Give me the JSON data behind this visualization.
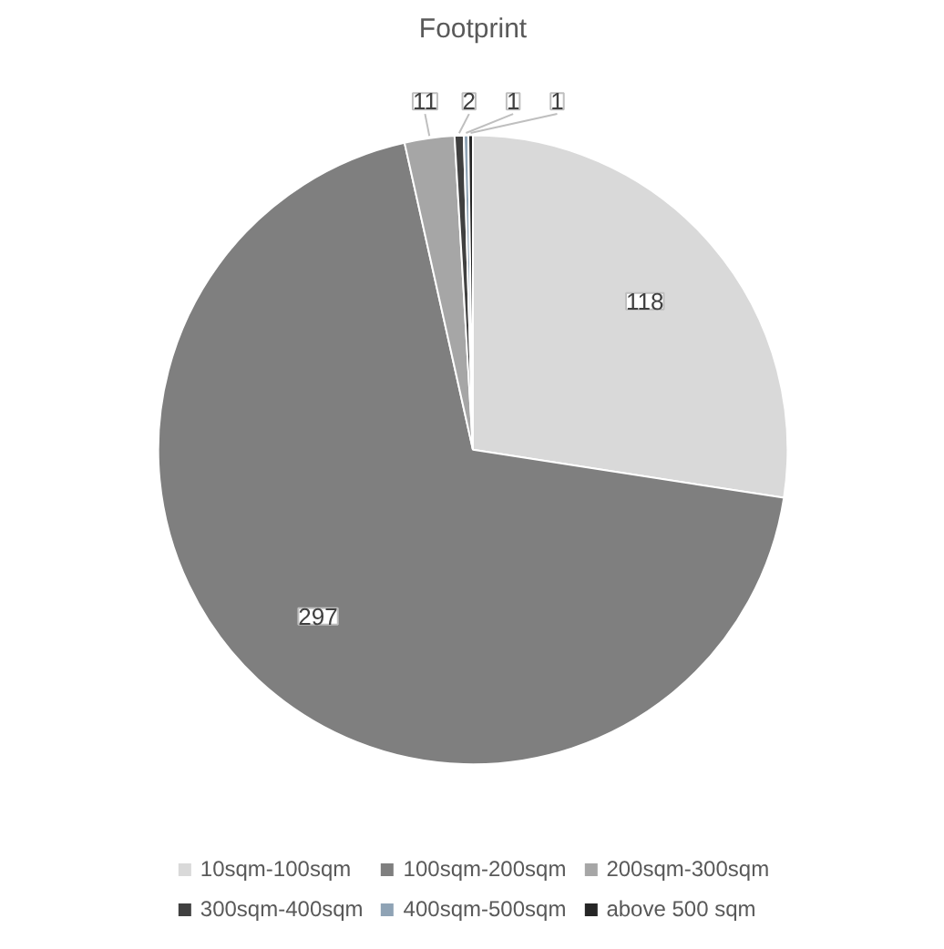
{
  "chart_data": {
    "type": "pie",
    "title": "Footprint",
    "categories": [
      "10sqm-100sqm",
      "100sqm-200sqm",
      "200sqm-300sqm",
      "300sqm-400sqm",
      "400sqm-500sqm",
      "above 500 sqm"
    ],
    "values": [
      118,
      297,
      11,
      2,
      1,
      1
    ],
    "colors": [
      "#d9d9d9",
      "#7f7f7f",
      "#a6a6a6",
      "#404040",
      "#8fa3b5",
      "#262626"
    ],
    "data_labels": true,
    "legend": "bottom"
  }
}
